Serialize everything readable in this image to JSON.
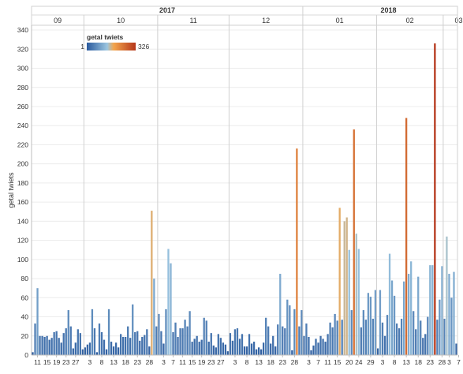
{
  "chart_data": {
    "type": "bar",
    "ylabel": "getal twiets",
    "ylim": [
      0,
      345
    ],
    "yticks": [
      0,
      20,
      40,
      60,
      80,
      100,
      120,
      140,
      160,
      180,
      200,
      220,
      240,
      260,
      280,
      300,
      320,
      340
    ],
    "legend": {
      "title": "getal twiets",
      "min_label": "1",
      "max_label": "326",
      "min": 1,
      "max": 326,
      "placement": "top-left",
      "colors": [
        "#2a5a9e",
        "#9cc6e0",
        "#f3a64d",
        "#b5361a"
      ]
    },
    "x_start": "2017-09-09",
    "years": [
      {
        "label": "2017",
        "months": 4
      },
      {
        "label": "2018",
        "months": 3
      }
    ],
    "months": [
      {
        "label": "09",
        "days": 22
      },
      {
        "label": "10",
        "days": 31
      },
      {
        "label": "11",
        "days": 30
      },
      {
        "label": "12",
        "days": 31
      },
      {
        "label": "01",
        "days": 31
      },
      {
        "label": "02",
        "days": 28
      },
      {
        "label": "03",
        "days": 13
      }
    ],
    "x_tick_labels": [
      {
        "label": "11",
        "index": 2
      },
      {
        "label": "15",
        "index": 6
      },
      {
        "label": "19",
        "index": 10
      },
      {
        "label": "23",
        "index": 14
      },
      {
        "label": "27",
        "index": 18
      },
      {
        "label": "3",
        "index": 24
      },
      {
        "label": "8",
        "index": 29
      },
      {
        "label": "13",
        "index": 34
      },
      {
        "label": "18",
        "index": 39
      },
      {
        "label": "23",
        "index": 44
      },
      {
        "label": "28",
        "index": 49
      },
      {
        "label": "3",
        "index": 55
      },
      {
        "label": "7",
        "index": 59
      },
      {
        "label": "11",
        "index": 63
      },
      {
        "label": "15",
        "index": 67
      },
      {
        "label": "19",
        "index": 71
      },
      {
        "label": "23",
        "index": 75
      },
      {
        "label": "27",
        "index": 79
      },
      {
        "label": "3",
        "index": 85
      },
      {
        "label": "8",
        "index": 90
      },
      {
        "label": "13",
        "index": 95
      },
      {
        "label": "18",
        "index": 100
      },
      {
        "label": "23",
        "index": 105
      },
      {
        "label": "28",
        "index": 110
      },
      {
        "label": "3",
        "index": 116
      },
      {
        "label": "7",
        "index": 120
      },
      {
        "label": "11",
        "index": 124
      },
      {
        "label": "15",
        "index": 128
      },
      {
        "label": "20",
        "index": 133
      },
      {
        "label": "24",
        "index": 137
      },
      {
        "label": "29",
        "index": 142
      },
      {
        "label": "3",
        "index": 147
      },
      {
        "label": "8",
        "index": 152
      },
      {
        "label": "13",
        "index": 157
      },
      {
        "label": "18",
        "index": 162
      },
      {
        "label": "23",
        "index": 167
      },
      {
        "label": "28",
        "index": 172
      },
      {
        "label": "3",
        "index": 175
      },
      {
        "label": "7",
        "index": 179
      },
      {
        "label": "11",
        "index": 183
      }
    ],
    "values": [
      3,
      33,
      70,
      20,
      20,
      19,
      20,
      16,
      18,
      24,
      25,
      18,
      13,
      23,
      28,
      47,
      30,
      7,
      13,
      27,
      23,
      6,
      8,
      11,
      13,
      48,
      28,
      3,
      33,
      24,
      16,
      6,
      48,
      14,
      9,
      13,
      8,
      22,
      19,
      19,
      30,
      18,
      53,
      24,
      25,
      15,
      19,
      21,
      27,
      9,
      151,
      80,
      30,
      43,
      25,
      12,
      48,
      111,
      96,
      24,
      34,
      19,
      28,
      28,
      37,
      30,
      46,
      14,
      17,
      20,
      14,
      16,
      39,
      36,
      14,
      23,
      10,
      8,
      22,
      18,
      13,
      11,
      4,
      23,
      15,
      27,
      28,
      17,
      22,
      9,
      9,
      22,
      12,
      14,
      6,
      8,
      6,
      13,
      39,
      30,
      12,
      20,
      9,
      32,
      85,
      30,
      28,
      58,
      52,
      5,
      48,
      216,
      30,
      47,
      20,
      33,
      19,
      5,
      10,
      17,
      13,
      20,
      17,
      14,
      22,
      34,
      29,
      43,
      36,
      154,
      37,
      140,
      144,
      110,
      47,
      236,
      127,
      111,
      29,
      47,
      37,
      65,
      61,
      38,
      68,
      7,
      68,
      34,
      20,
      42,
      106,
      78,
      62,
      33,
      28,
      38,
      77,
      248,
      85,
      98,
      46,
      27,
      82,
      36,
      18,
      22,
      40,
      94,
      94,
      326,
      37,
      58,
      93,
      38,
      124,
      85,
      60,
      87,
      12
    ]
  }
}
